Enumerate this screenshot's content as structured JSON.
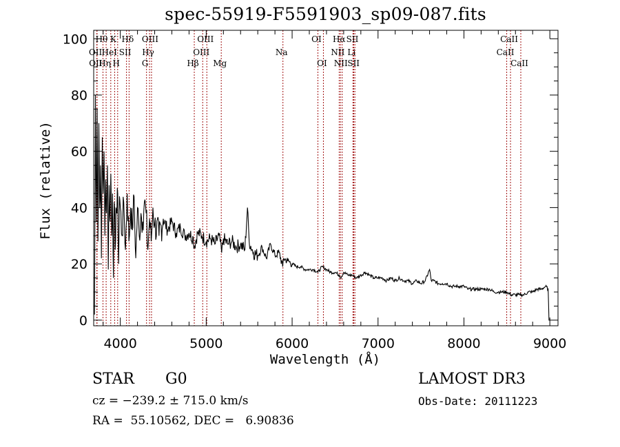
{
  "chart_data": {
    "type": "line",
    "title": "spec-55919-F5591903_sp09-087.fits",
    "xlabel": "Wavelength (Å)",
    "ylabel": "Flux (relative)",
    "xlim": [
      3690,
      9095
    ],
    "ylim": [
      -2,
      103
    ],
    "xticks": [
      4000,
      5000,
      6000,
      7000,
      8000,
      9000
    ],
    "xtick_labels": [
      "4000",
      "5000",
      "6000",
      "7000",
      "8000",
      "9000"
    ],
    "xminor_step": 200,
    "yticks": [
      0,
      20,
      40,
      60,
      80,
      100
    ],
    "ytick_labels": [
      "0",
      "20",
      "40",
      "60",
      "80",
      "100"
    ],
    "yminor_step": 5,
    "grid": false,
    "line_color": "#000000",
    "marker_line_color": "#a01010",
    "series": [
      {
        "name": "spectrum",
        "x": [
          3700,
          3710,
          3720,
          3730,
          3740,
          3750,
          3760,
          3770,
          3780,
          3790,
          3800,
          3810,
          3820,
          3830,
          3840,
          3850,
          3860,
          3870,
          3880,
          3890,
          3900,
          3910,
          3920,
          3930,
          3940,
          3950,
          3960,
          3970,
          3980,
          3990,
          4000,
          4020,
          4040,
          4060,
          4080,
          4100,
          4120,
          4140,
          4160,
          4180,
          4200,
          4220,
          4240,
          4260,
          4280,
          4300,
          4320,
          4340,
          4360,
          4380,
          4400,
          4450,
          4500,
          4550,
          4600,
          4650,
          4700,
          4750,
          4800,
          4850,
          4860,
          4900,
          4950,
          5000,
          5050,
          5100,
          5150,
          5180,
          5200,
          5250,
          5300,
          5350,
          5400,
          5450,
          5480,
          5500,
          5550,
          5600,
          5650,
          5700,
          5750,
          5800,
          5850,
          5890,
          5900,
          5950,
          6000,
          6050,
          6100,
          6150,
          6200,
          6250,
          6300,
          6350,
          6400,
          6450,
          6500,
          6550,
          6563,
          6600,
          6650,
          6700,
          6750,
          6800,
          6850,
          6900,
          6950,
          7000,
          7050,
          7100,
          7150,
          7200,
          7250,
          7300,
          7350,
          7400,
          7450,
          7500,
          7550,
          7600,
          7620,
          7650,
          7700,
          7750,
          7800,
          7850,
          7900,
          7950,
          8000,
          8050,
          8100,
          8150,
          8200,
          8250,
          8300,
          8350,
          8400,
          8450,
          8500,
          8550,
          8600,
          8650,
          8700,
          8750,
          8800,
          8850,
          8900,
          8950,
          8980,
          8990,
          9000
        ],
        "y": [
          2,
          80,
          35,
          75,
          28,
          70,
          40,
          55,
          22,
          65,
          45,
          60,
          30,
          50,
          38,
          55,
          18,
          48,
          35,
          52,
          30,
          45,
          15,
          42,
          25,
          40,
          38,
          45,
          20,
          44,
          40,
          30,
          42,
          25,
          45,
          28,
          40,
          32,
          44,
          22,
          40,
          30,
          38,
          35,
          42,
          38,
          25,
          36,
          28,
          40,
          34,
          30,
          36,
          32,
          35,
          31,
          33,
          30,
          31,
          29,
          26,
          31,
          30,
          28,
          29,
          27,
          30,
          24,
          29,
          27,
          28,
          26,
          27,
          25,
          40,
          28,
          24,
          23,
          26,
          22,
          27,
          23,
          24,
          19,
          22,
          21,
          20,
          19,
          19,
          18,
          18,
          18,
          17,
          19,
          18,
          17,
          17,
          16,
          15,
          17,
          16,
          16,
          15,
          16,
          17,
          16,
          15,
          15,
          15,
          14,
          15,
          14,
          15,
          14,
          14,
          13,
          14,
          13,
          14,
          18,
          14,
          14,
          13,
          13,
          13,
          12,
          12,
          12,
          12,
          11,
          11,
          11,
          11,
          11,
          11,
          10,
          10,
          10,
          10,
          9,
          9,
          9,
          9,
          10,
          10,
          11,
          11,
          12,
          11,
          0,
          0
        ]
      }
    ],
    "line_markers": [
      {
        "label": "Hθ",
        "wavelength": 3798,
        "row": 0
      },
      {
        "label": "K",
        "wavelength": 3934,
        "row": 0
      },
      {
        "label": "Hδ",
        "wavelength": 4102,
        "row": 0
      },
      {
        "label": "OIII",
        "wavelength": 4363,
        "row": 0
      },
      {
        "label": "OIII",
        "wavelength": 5007,
        "row": 0
      },
      {
        "label": "OI",
        "wavelength": 6300,
        "row": 0
      },
      {
        "label": "Hα",
        "wavelength": 6563,
        "row": 0
      },
      {
        "label": "SII",
        "wavelength": 6717,
        "row": 0
      },
      {
        "label": "CaII",
        "wavelength": 8542,
        "row": 0
      },
      {
        "label": "OII",
        "wavelength": 3727,
        "row": 1
      },
      {
        "label": "HeI",
        "wavelength": 3889,
        "row": 1
      },
      {
        "label": "SII",
        "wavelength": 4072,
        "row": 1
      },
      {
        "label": "Hγ",
        "wavelength": 4340,
        "row": 1
      },
      {
        "label": "OIII",
        "wavelength": 4959,
        "row": 1
      },
      {
        "label": "Na",
        "wavelength": 5893,
        "row": 1
      },
      {
        "label": "NII",
        "wavelength": 6548,
        "row": 1
      },
      {
        "label": "Li",
        "wavelength": 6708,
        "row": 1
      },
      {
        "label": "CaII",
        "wavelength": 8498,
        "row": 1
      },
      {
        "label": "OII",
        "wavelength": 3729,
        "row": 2
      },
      {
        "label": "Hη",
        "wavelength": 3835,
        "row": 2
      },
      {
        "label": "H",
        "wavelength": 3969,
        "row": 2
      },
      {
        "label": "G",
        "wavelength": 4305,
        "row": 2
      },
      {
        "label": "Hβ",
        "wavelength": 4861,
        "row": 2
      },
      {
        "label": "Mg",
        "wavelength": 5175,
        "row": 2
      },
      {
        "label": "OI",
        "wavelength": 6364,
        "row": 2
      },
      {
        "label": "NII",
        "wavelength": 6583,
        "row": 2
      },
      {
        "label": "SII",
        "wavelength": 6731,
        "row": 2
      },
      {
        "label": "CaII",
        "wavelength": 8662,
        "row": 2
      }
    ]
  },
  "info": {
    "object_class": "STAR",
    "subclass": "G0",
    "redshift": "cz = −239.2 ± 715.0 km/s",
    "coords": "RA =  55.10562, DEC =   6.90836",
    "survey": "LAMOST DR3",
    "obs_date": "Obs-Date: 20111223"
  }
}
